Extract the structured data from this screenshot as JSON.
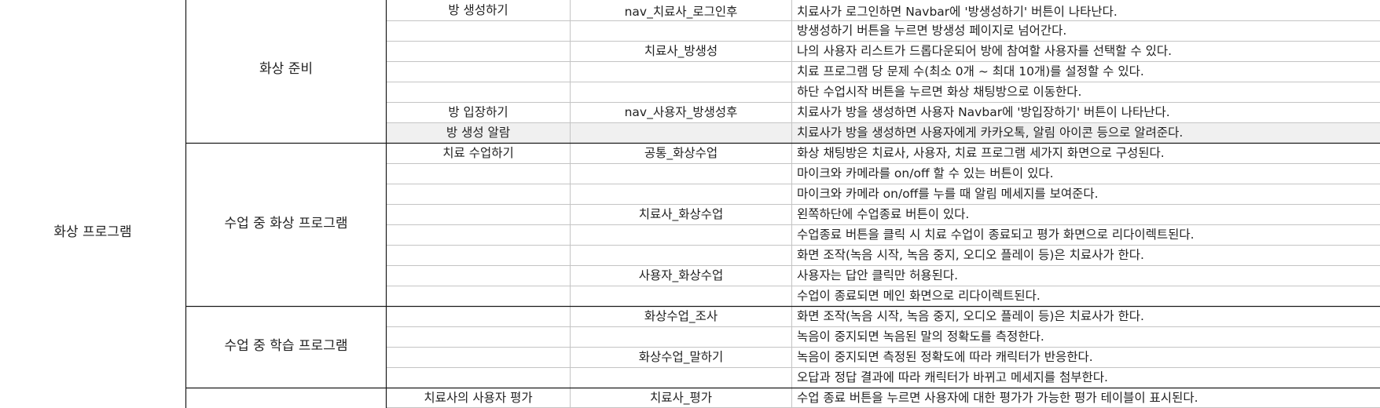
{
  "sheet": {
    "col1_groups": [
      {
        "label": "화상 프로그램"
      }
    ],
    "col2_groups": [
      {
        "label": "화상 준비"
      },
      {
        "label": "수업 중 화상 프로그램"
      },
      {
        "label": "수업 중 학습 프로그램"
      },
      {
        "label": ""
      }
    ],
    "rows": [
      {
        "feature": "방 생성하기",
        "page": "nav_치료사_로그인후",
        "desc": "치료사가 로그인하면 Navbar에 '방생성하기' 버튼이 나타난다."
      },
      {
        "feature": "",
        "page": "",
        "desc": "방생성하기 버튼을 누르면 방생성 페이지로 넘어간다."
      },
      {
        "feature": "",
        "page": "치료사_방생성",
        "desc": "나의 사용자 리스트가 드롭다운되어 방에 참여할 사용자를 선택할 수 있다."
      },
      {
        "feature": "",
        "page": "",
        "desc": "치료 프로그램 당 문제 수(최소 0개 ~ 최대 10개)를 설정할 수 있다."
      },
      {
        "feature": "",
        "page": "",
        "desc": "하단 수업시작 버튼을 누르면 화상 채팅방으로 이동한다."
      },
      {
        "feature": "방 입장하기",
        "page": "nav_사용자_방생성후",
        "desc": "치료사가 방을 생성하면 사용자 Navbar에 '방입장하기' 버튼이 나타난다."
      },
      {
        "feature": "방 생성 알람",
        "page": "",
        "desc": "치료사가 방을 생성하면 사용자에게 카카오톡, 알림 아이콘 등으로 알려준다."
      },
      {
        "feature": "치료 수업하기",
        "page": "공통_화상수업",
        "desc": "화상 채팅방은 치료사, 사용자, 치료 프로그램 세가지 화면으로 구성된다."
      },
      {
        "feature": "",
        "page": "",
        "desc": "마이크와 카메라를 on/off 할 수 있는 버튼이 있다."
      },
      {
        "feature": "",
        "page": "",
        "desc": "마이크와 카메라 on/off를 누를 때 알림 메세지를 보여준다."
      },
      {
        "feature": "",
        "page": "치료사_화상수업",
        "desc": "왼쪽하단에 수업종료 버튼이 있다."
      },
      {
        "feature": "",
        "page": "",
        "desc": "수업종료 버튼을 클릭 시 치료 수업이 종료되고 평가 화면으로 리다이렉트된다."
      },
      {
        "feature": "",
        "page": "",
        "desc": "화면 조작(녹음 시작, 녹음 중지, 오디오 플레이 등)은 치료사가 한다."
      },
      {
        "feature": "",
        "page": "사용자_화상수업",
        "desc": "사용자는 답안 클릭만 허용된다."
      },
      {
        "feature": "",
        "page": "",
        "desc": "수업이 종료되면 메인 화면으로 리다이렉트된다."
      },
      {
        "feature": "",
        "page": "화상수업_조사",
        "desc": "화면 조작(녹음 시작, 녹음 중지, 오디오 플레이 등)은 치료사가 한다."
      },
      {
        "feature": "",
        "page": "",
        "desc": "녹음이 중지되면 녹음된 말의 정확도를 측정한다."
      },
      {
        "feature": "",
        "page": "화상수업_말하기",
        "desc": "녹음이 중지되면 측정된 정확도에 따라 캐릭터가 반응한다."
      },
      {
        "feature": "",
        "page": "",
        "desc": "오답과 정답 결과에 따라 캐릭터가 바뀌고 메세지를 첨부한다."
      },
      {
        "feature": "치료사의 사용자 평가",
        "page": "치료사_평가",
        "desc": "수업 종료 버튼을 누르면 사용자에 대한 평가가 가능한 평가 테이블이 표시된다."
      }
    ],
    "colors": {
      "border": "#bfbfbf",
      "strong_border": "#1a1a1a",
      "highlight_row": "#f0f0f0",
      "text": "#222222"
    }
  }
}
